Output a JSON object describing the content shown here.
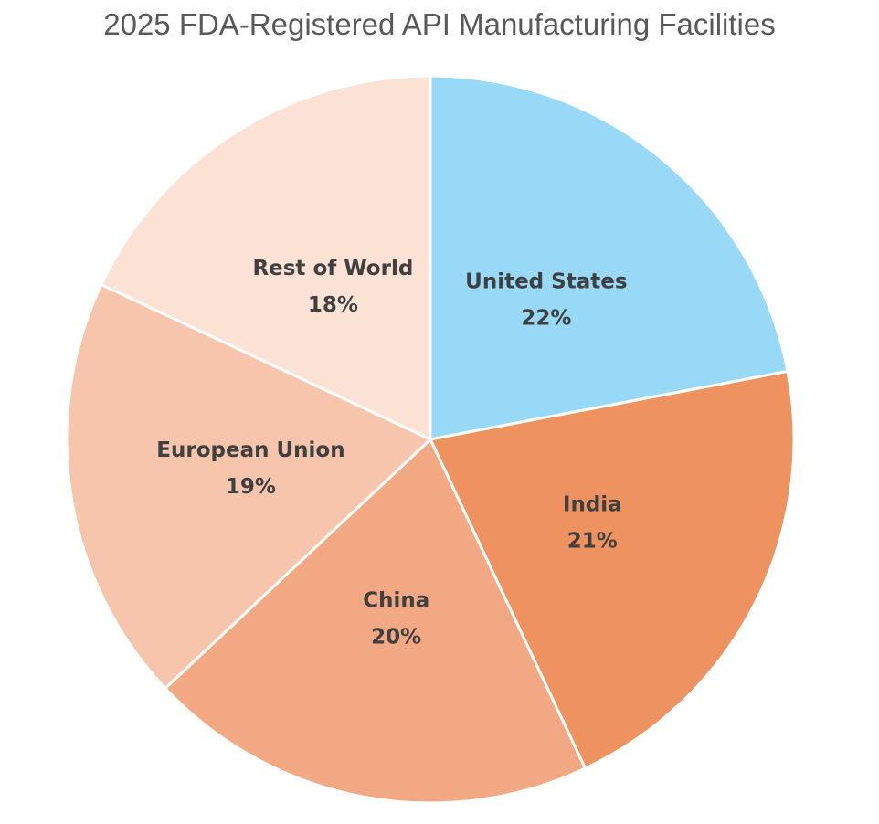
{
  "chart_data": {
    "type": "pie",
    "title": "2025 FDA-Registered API Manufacturing Facilities",
    "start": "top",
    "direction": "clockwise",
    "slices": [
      {
        "label": "United States",
        "value": 22,
        "display": "22%",
        "color": "#97D9F7"
      },
      {
        "label": "India",
        "value": 21,
        "display": "21%",
        "color": "#EE9360"
      },
      {
        "label": "China",
        "value": 20,
        "display": "20%",
        "color": "#F2A983"
      },
      {
        "label": "European Union",
        "value": 19,
        "display": "19%",
        "color": "#F6C5AC"
      },
      {
        "label": "Rest of World",
        "value": 18,
        "display": "18%",
        "color": "#FBE2D5"
      }
    ],
    "slice_border_color": "#FFFFFF",
    "label_color": "#404040",
    "title_color": "#595959"
  }
}
